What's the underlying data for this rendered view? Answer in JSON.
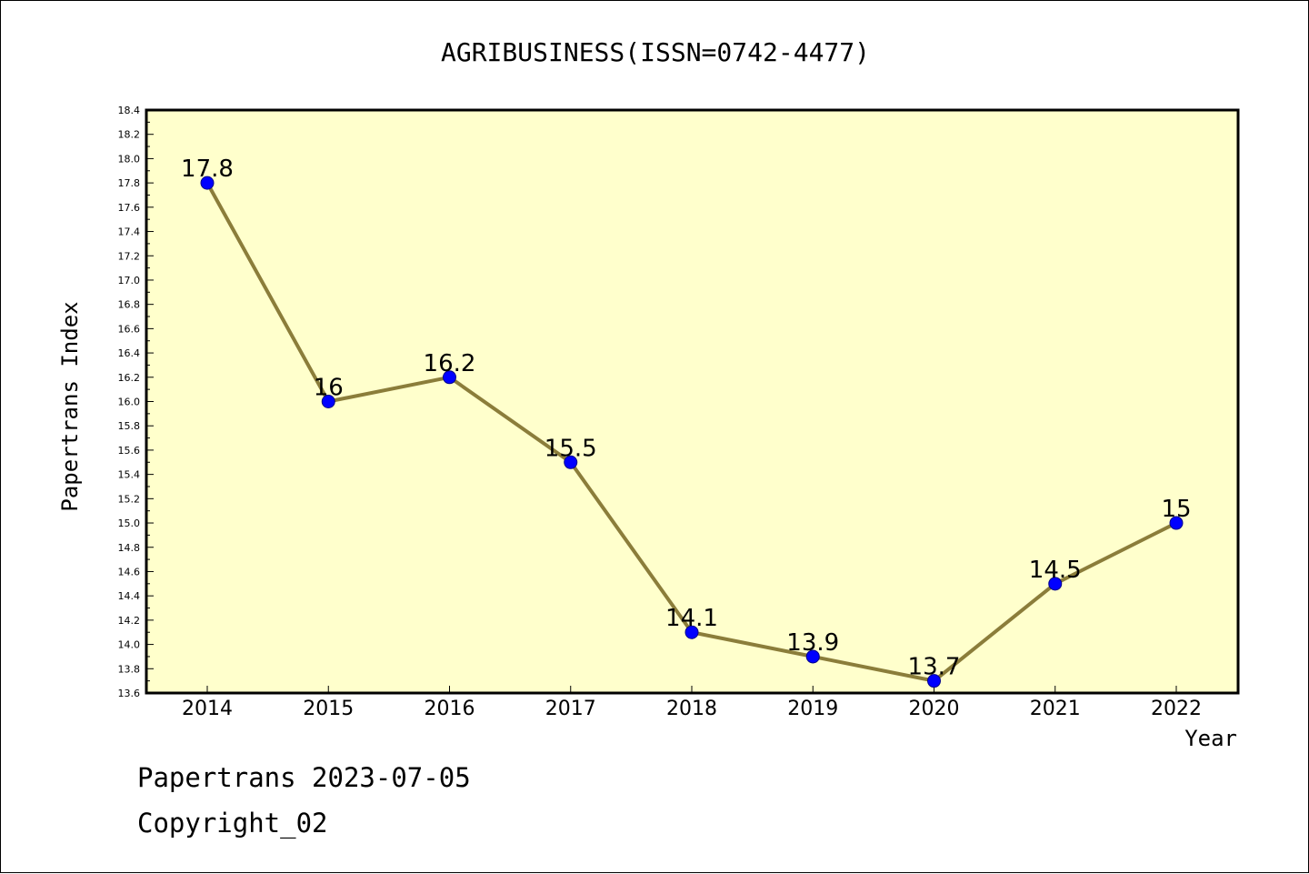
{
  "chart_data": {
    "type": "line",
    "title": "AGRIBUSINESS(ISSN=0742-4477)",
    "xlabel": "Year",
    "ylabel": "Papertrans Index",
    "categories": [
      "2014",
      "2015",
      "2016",
      "2017",
      "2018",
      "2019",
      "2020",
      "2021",
      "2022"
    ],
    "series": [
      {
        "values": [
          17.8,
          16,
          16.2,
          15.5,
          14.1,
          13.9,
          13.7,
          14.5,
          15
        ],
        "labels": [
          "17.8",
          "16",
          "16.2",
          "15.5",
          "14.1",
          "13.9",
          "13.7",
          "14.5",
          "15"
        ]
      }
    ],
    "ylim": [
      13.6,
      18.4
    ],
    "y_ticks": [
      "13.6",
      "13.8",
      "14.0",
      "14.2",
      "14.4",
      "14.6",
      "14.8",
      "15.0",
      "15.2",
      "15.4",
      "15.6",
      "15.8",
      "16.0",
      "16.2",
      "16.4",
      "16.6",
      "16.8",
      "17.0",
      "17.2",
      "17.4",
      "17.6",
      "17.8",
      "18.0",
      "18.2",
      "18.4"
    ],
    "grid": false,
    "colors": {
      "plot_background": "#FFFFCC",
      "line": "#8B7D3A",
      "marker_fill": "#0000FF",
      "marker_stroke": "#00008B"
    }
  },
  "footer": {
    "line1": "Papertrans 2023-07-05",
    "line2": "Copyright_02"
  }
}
